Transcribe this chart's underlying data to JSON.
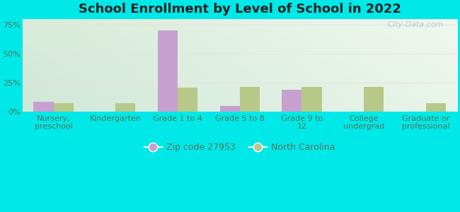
{
  "title": "School Enrollment by Level of School in 2022",
  "categories": [
    "Nursery,\npreschool",
    "Kindergarten",
    "Grade 1 to 4",
    "Grade 5 to 8",
    "Grade 9 to\n12",
    "College\nundergrad",
    "Graduate or\nprofessional"
  ],
  "zip_values": [
    8.5,
    0.0,
    70.0,
    5.0,
    19.0,
    0.0,
    0.0
  ],
  "nc_values": [
    7.5,
    7.5,
    20.5,
    21.5,
    21.5,
    21.5,
    7.5
  ],
  "zip_color": "#c8a0d0",
  "nc_color": "#b8c888",
  "background_outer": "#00e8e8",
  "background_inner_topleft": "#d8ecd8",
  "background_inner_topright": "#f0f5ee",
  "background_inner_bottom": "#d0e8d8",
  "ylim": [
    0,
    80
  ],
  "yticks": [
    0,
    25,
    50,
    75
  ],
  "ytick_labels": [
    "0%",
    "25%",
    "50%",
    "75%"
  ],
  "legend_zip_label": "Zip code 27953",
  "legend_nc_label": "North Carolina",
  "watermark": "City-Data.com",
  "title_fontsize": 13,
  "tick_fontsize": 8,
  "legend_fontsize": 9,
  "tick_color": "#557755",
  "grid_color": "#e8e0e8",
  "bar_width": 0.32
}
